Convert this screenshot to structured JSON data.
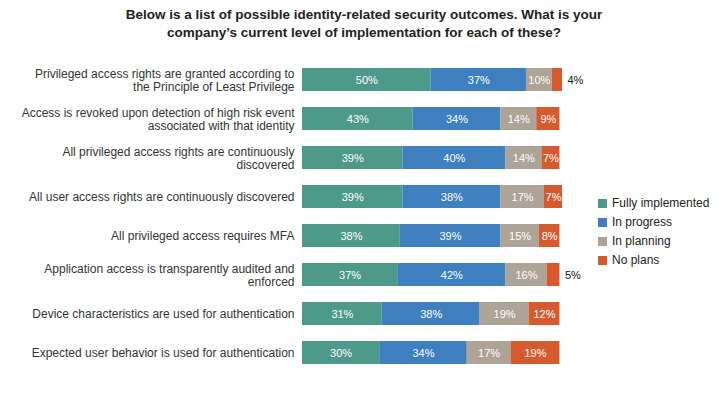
{
  "chart_data": {
    "type": "bar",
    "orientation": "horizontal",
    "stacked": true,
    "data_labels": true,
    "tick_labels": "y",
    "grid": false,
    "legend": "right",
    "title": "Below is a list of possible identity-related security outcomes. What is your company’s current level of implementation for each of these?",
    "categories": [
      "Privileged access rights are granted according to the Principle of Least Privilege",
      "Access is revoked upon detection of high risk event associated with that identity",
      "All privileged access rights are continuously discovered",
      "All user access rights are continuously discovered",
      "All privileged access requires MFA",
      "Application access is transparently audited and enforced",
      "Device characteristics are used for authentication",
      "Expected user behavior is used for authentication"
    ],
    "xlim": [
      0,
      101
    ],
    "xticks": [],
    "series": [
      {
        "name": "Fully implemented",
        "color": "#4e9a8a",
        "values": [
          50,
          43,
          39,
          39,
          38,
          37,
          31,
          30
        ],
        "value_labels": [
          "50%",
          "43%",
          "39%",
          "39%",
          "38%",
          "37%",
          "31%",
          "30%"
        ]
      },
      {
        "name": "In progress",
        "color": "#3d7fbf",
        "values": [
          37,
          34,
          40,
          38,
          39,
          42,
          38,
          34
        ],
        "value_labels": [
          "37%",
          "34%",
          "40%",
          "38%",
          "39%",
          "42%",
          "38%",
          "34%"
        ]
      },
      {
        "name": "In planning",
        "color": "#ada497",
        "values": [
          10,
          14,
          14,
          17,
          15,
          16,
          19,
          17
        ],
        "value_labels": [
          "10%",
          "14%",
          "14%",
          "17%",
          "15%",
          "16%",
          "19%",
          "17%"
        ]
      },
      {
        "name": "No plans",
        "color": "#d55a2e",
        "values": [
          4,
          9,
          7,
          7,
          8,
          5,
          12,
          19
        ],
        "value_labels": [
          "4%",
          "9%",
          "7%",
          "7%",
          "8%",
          "5%",
          "12%",
          "19%"
        ]
      }
    ]
  }
}
